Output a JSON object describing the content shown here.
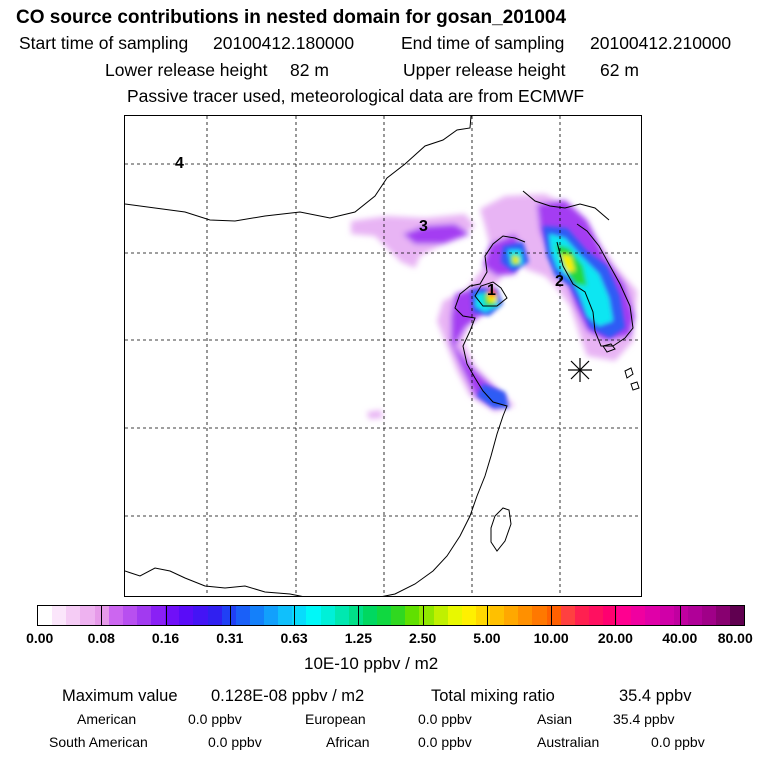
{
  "header": {
    "title": "CO  source contributions in nested domain for gosan_201004",
    "start_label": "Start time of sampling",
    "start_value": "20100412.180000",
    "end_label": "End time of sampling",
    "end_value": "20100412.210000",
    "lower_label": "Lower release height",
    "lower_value": "82 m",
    "upper_label": "Upper release height",
    "upper_value": "62 m",
    "tracer_note": "Passive tracer used, meteorological data are from ECMWF"
  },
  "map": {
    "region_labels": [
      "1",
      "2",
      "3",
      "4"
    ],
    "receptor_marker": "gosan-receptor"
  },
  "colorbar": {
    "unit": "10E-10 ppbv / m2",
    "tick_labels": [
      "0.00",
      "0.08",
      "0.16",
      "0.31",
      "0.63",
      "1.25",
      "2.50",
      "5.00",
      "10.00",
      "20.00",
      "40.00",
      "80.00"
    ],
    "colors": [
      "#ffffff",
      "#fbe6fb",
      "#f5ccf5",
      "#eeb2f0",
      "#e69ae9",
      "#cc66f0",
      "#b84ff0",
      "#a23af0",
      "#8a20f5",
      "#7010f8",
      "#5a0cf8",
      "#4414f5",
      "#3020f0",
      "#2040f5",
      "#1a60f8",
      "#1480fa",
      "#12a0fc",
      "#10c0fc",
      "#08dcfc",
      "#00f8f8",
      "#00f0d8",
      "#00e8b0",
      "#00e088",
      "#00d860",
      "#10d840",
      "#30d820",
      "#60e000",
      "#90e800",
      "#c0f000",
      "#e8f800",
      "#fff000",
      "#ffd800",
      "#ffc000",
      "#ffa800",
      "#ff9000",
      "#ff7800",
      "#ff6000",
      "#ff4040",
      "#ff2050",
      "#ff1060",
      "#ff0070",
      "#ff0090",
      "#f000a0",
      "#e000a8",
      "#d000a8",
      "#c000a0",
      "#b00098",
      "#a00088",
      "#880070",
      "#600050"
    ]
  },
  "stats": {
    "max_label": "Maximum value",
    "max_value": "0.128E-08 ppbv / m2",
    "total_label": "Total mixing ratio",
    "total_value": "35.4 ppbv",
    "american_label": "American",
    "american_value": "0.0 ppbv",
    "european_label": "European",
    "european_value": "0.0 ppbv",
    "asian_label": "Asian",
    "asian_value": "35.4 ppbv",
    "south_american_label": "South American",
    "south_american_value": "0.0 ppbv",
    "african_label": "African",
    "african_value": "0.0 ppbv",
    "australian_label": "Australian",
    "australian_value": "0.0 ppbv"
  }
}
